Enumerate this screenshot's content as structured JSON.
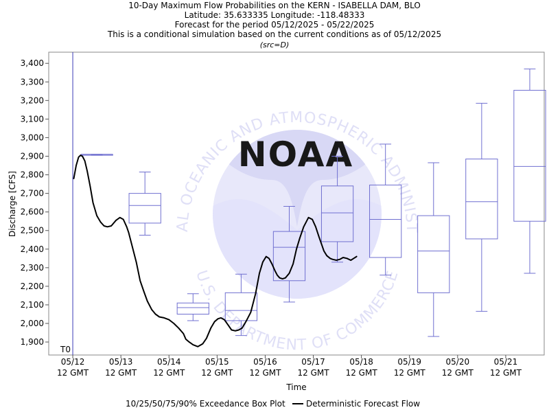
{
  "title_lines": [
    "10-Day Maximum Flow Probabilities on the KERN - ISABELLA DAM, BLO",
    "Latitude: 35.633335 Longitude: -118.48333",
    "Forecast for the period 05/12/2025 - 05/22/2025",
    "This is a conditional simulation based on the current conditions as of 05/12/2025",
    "(src=D)"
  ],
  "watermark": {
    "logo_text": "NOAA",
    "ring_top": "NATIONAL OCEANIC AND ATMOSPHERIC ADMINISTRATION",
    "ring_bottom": "U.S. DEPARTMENT OF COMMERCE"
  },
  "colors": {
    "box": "#6f6fd0",
    "t0_line": "#3a3ab8",
    "deterministic": "#000000",
    "watermark_fill": "#d8d8f8"
  },
  "chart_data": {
    "type": "box",
    "xlabel": "Time",
    "ylabel": "Discharge [CFS]",
    "xlim": [
      0,
      10.3
    ],
    "ylim": [
      1830,
      3460
    ],
    "y_ticks": [
      1900,
      2000,
      2100,
      2200,
      2300,
      2400,
      2500,
      2600,
      2700,
      2800,
      2900,
      3000,
      3100,
      3200,
      3300,
      3400
    ],
    "y_tick_labels": [
      "1,900",
      "2,000",
      "2,100",
      "2,200",
      "2,300",
      "2,400",
      "2,500",
      "2,600",
      "2,700",
      "2,800",
      "2,900",
      "3,000",
      "3,100",
      "3,200",
      "3,300",
      "3,400"
    ],
    "x_ticks": [
      {
        "x": 0.5,
        "date": "05/12",
        "time": "12 GMT"
      },
      {
        "x": 1.5,
        "date": "05/13",
        "time": "12 GMT"
      },
      {
        "x": 2.5,
        "date": "05/14",
        "time": "12 GMT"
      },
      {
        "x": 3.5,
        "date": "05/15",
        "time": "12 GMT"
      },
      {
        "x": 4.5,
        "date": "05/16",
        "time": "12 GMT"
      },
      {
        "x": 5.5,
        "date": "05/17",
        "time": "12 GMT"
      },
      {
        "x": 6.5,
        "date": "05/18",
        "time": "12 GMT"
      },
      {
        "x": 7.5,
        "date": "05/19",
        "time": "12 GMT"
      },
      {
        "x": 8.5,
        "date": "05/20",
        "time": "12 GMT"
      },
      {
        "x": 9.5,
        "date": "05/21",
        "time": "12 GMT"
      }
    ],
    "t0": {
      "x": 0.5,
      "label": "T0"
    },
    "boxes": [
      {
        "x": 1,
        "p10": 2905,
        "p25": 2905,
        "p50": 2910,
        "p75": 2910,
        "p90": 2910
      },
      {
        "x": 2,
        "p10": 2475,
        "p25": 2540,
        "p50": 2635,
        "p75": 2700,
        "p90": 2815
      },
      {
        "x": 3,
        "p10": 2015,
        "p25": 2050,
        "p50": 2085,
        "p75": 2110,
        "p90": 2160
      },
      {
        "x": 4,
        "p10": 1935,
        "p25": 2015,
        "p50": 2070,
        "p75": 2165,
        "p90": 2265
      },
      {
        "x": 5,
        "p10": 2115,
        "p25": 2230,
        "p50": 2410,
        "p75": 2495,
        "p90": 2630
      },
      {
        "x": 6,
        "p10": 2330,
        "p25": 2440,
        "p50": 2595,
        "p75": 2740,
        "p90": 2900
      },
      {
        "x": 7,
        "p10": 2260,
        "p25": 2355,
        "p50": 2560,
        "p75": 2745,
        "p90": 2965
      },
      {
        "x": 8,
        "p10": 1930,
        "p25": 2165,
        "p50": 2390,
        "p75": 2580,
        "p90": 2865
      },
      {
        "x": 9,
        "p10": 2065,
        "p25": 2455,
        "p50": 2655,
        "p75": 2885,
        "p90": 3185
      },
      {
        "x": 10,
        "p10": 2270,
        "p25": 2550,
        "p50": 2845,
        "p75": 3255,
        "p90": 3370
      }
    ],
    "deterministic_series": {
      "name": "Deterministic Forecast Flow",
      "x": [
        0.52,
        0.57,
        0.62,
        0.66,
        0.7,
        0.75,
        0.8,
        0.86,
        0.92,
        1.0,
        1.08,
        1.15,
        1.22,
        1.3,
        1.4,
        1.48,
        1.55,
        1.62,
        1.66,
        1.75,
        1.82,
        1.9,
        1.98,
        2.05,
        2.14,
        2.22,
        2.3,
        2.4,
        2.5,
        2.6,
        2.7,
        2.8,
        2.85,
        2.92,
        3.0,
        3.1,
        3.2,
        3.28,
        3.37,
        3.45,
        3.52,
        3.58,
        3.65,
        3.72,
        3.8,
        3.88,
        3.95,
        4.02,
        4.1,
        4.2,
        4.3,
        4.38,
        4.45,
        4.52,
        4.58,
        4.64,
        4.7,
        4.75,
        4.8,
        4.86,
        4.92,
        5.0,
        5.08,
        5.15,
        5.22,
        5.3,
        5.4,
        5.48,
        5.55,
        5.62,
        5.68,
        5.72,
        5.78,
        5.85,
        5.9,
        5.98,
        6.05,
        6.12,
        6.2,
        6.28,
        6.34,
        6.4
      ],
      "y": [
        2780,
        2850,
        2895,
        2905,
        2900,
        2875,
        2820,
        2740,
        2650,
        2580,
        2545,
        2525,
        2520,
        2525,
        2555,
        2570,
        2560,
        2520,
        2490,
        2400,
        2330,
        2230,
        2170,
        2120,
        2075,
        2050,
        2035,
        2030,
        2020,
        2000,
        1975,
        1945,
        1915,
        1900,
        1885,
        1875,
        1890,
        1920,
        1975,
        2010,
        2025,
        2030,
        2020,
        1995,
        1965,
        1960,
        1965,
        1975,
        2010,
        2060,
        2160,
        2270,
        2330,
        2360,
        2350,
        2320,
        2285,
        2260,
        2245,
        2240,
        2245,
        2270,
        2320,
        2400,
        2460,
        2520,
        2570,
        2560,
        2520,
        2465,
        2420,
        2390,
        2365,
        2350,
        2345,
        2340,
        2345,
        2355,
        2350,
        2340,
        2350,
        2360
      ]
    },
    "legend": {
      "position": "bottom",
      "items": [
        "10/25/50/75/90% Exceedance Box Plot",
        "Deterministic Forecast Flow"
      ]
    }
  }
}
